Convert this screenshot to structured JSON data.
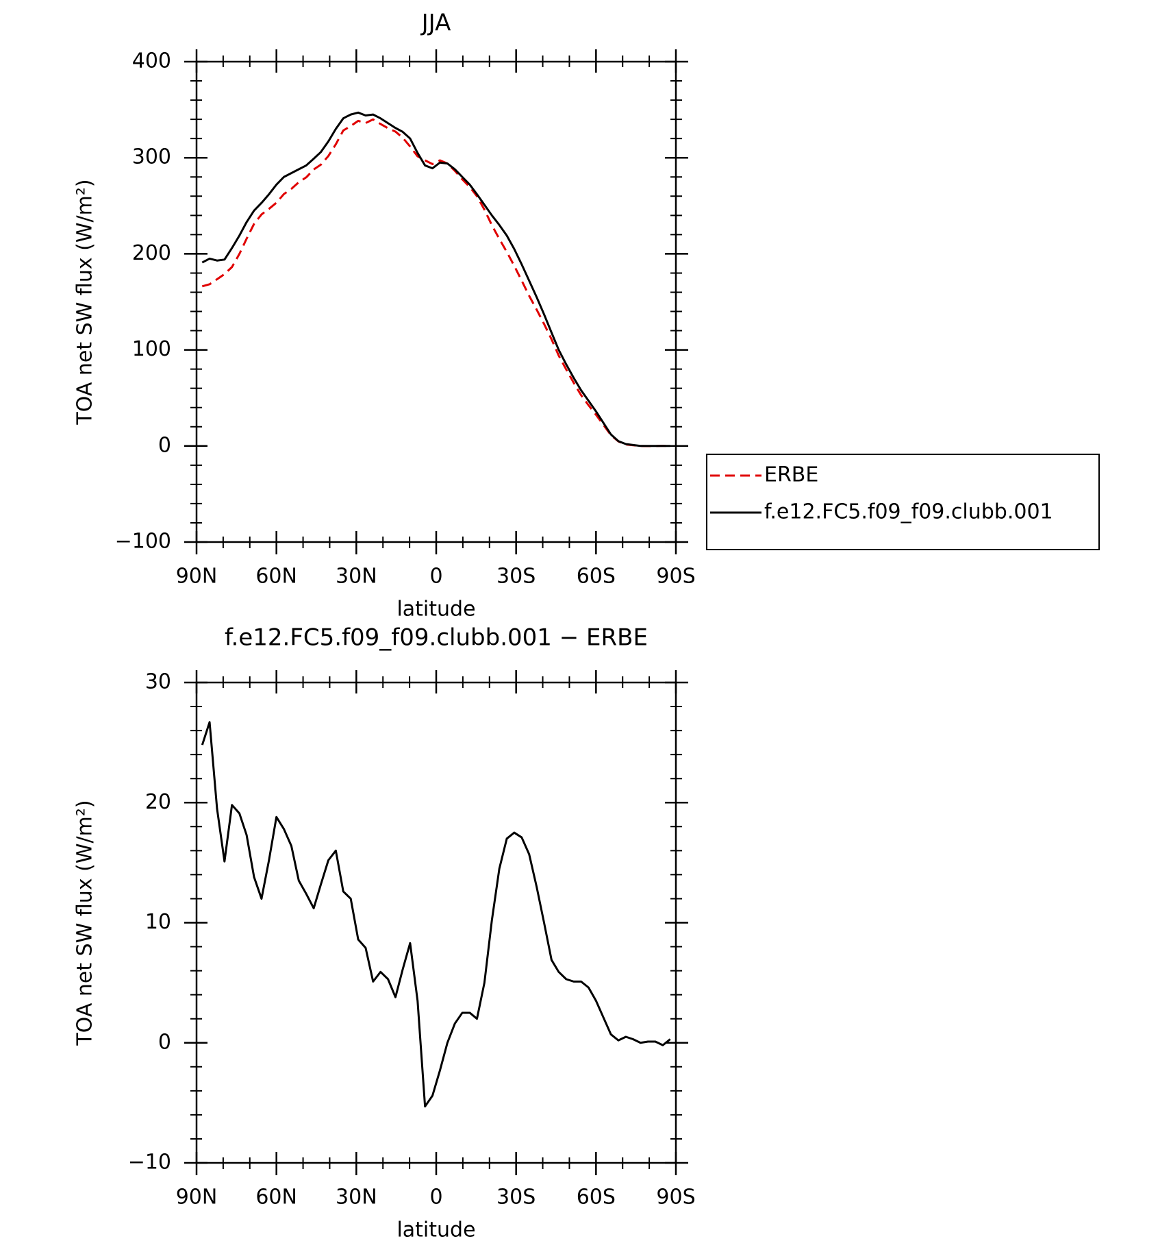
{
  "chart_data": [
    {
      "type": "line",
      "title": "JJA",
      "xlabel": "latitude",
      "ylabel": "TOA net SW flux (W/m²)",
      "x": [
        87.86,
        85.1,
        82.3,
        79.5,
        76.7,
        73.9,
        71.2,
        68.4,
        65.6,
        62.8,
        60.0,
        57.2,
        54.4,
        51.6,
        48.8,
        46.0,
        43.3,
        40.5,
        37.7,
        34.9,
        32.1,
        29.3,
        26.5,
        23.7,
        20.9,
        18.1,
        15.3,
        12.6,
        9.8,
        7.0,
        4.2,
        1.4,
        -1.4,
        -4.2,
        -7.0,
        -9.8,
        -12.6,
        -15.3,
        -18.1,
        -20.9,
        -23.7,
        -26.5,
        -29.3,
        -32.1,
        -34.9,
        -37.7,
        -40.5,
        -43.3,
        -46.0,
        -48.8,
        -51.6,
        -54.4,
        -57.2,
        -60.0,
        -62.8,
        -65.6,
        -68.4,
        -71.2,
        -73.9,
        -76.7,
        -79.5,
        -82.3,
        -85.1,
        -87.86
      ],
      "series": [
        {
          "name": "ERBE",
          "color": "#e00000",
          "linestyle": "dashed",
          "values": [
            166.2,
            168.3,
            173.5,
            178.9,
            186.2,
            199.9,
            215.7,
            231.2,
            241,
            246.8,
            253.2,
            262.2,
            267.6,
            274.5,
            279.6,
            287.8,
            292.8,
            301.8,
            314,
            328.4,
            333,
            338.4,
            336.1,
            339.9,
            335.1,
            330.7,
            327.2,
            320.9,
            311.7,
            301.5,
            297.3,
            293.4,
            297.3,
            294,
            286.4,
            277.5,
            269.5,
            260,
            246,
            229.8,
            215.5,
            202,
            187.5,
            172.1,
            156.3,
            142,
            127,
            111.1,
            94.1,
            79.7,
            65.9,
            52.9,
            42.4,
            32.5,
            21.9,
            11.3,
            4.8,
            1.5,
            0.7,
            0,
            -0.1,
            -0.1,
            0.2,
            -0.3
          ]
        },
        {
          "name": "f.e12.FC5.f09_f09.clubb.001",
          "color": "#000000",
          "linestyle": "solid",
          "values": [
            191,
            195,
            193,
            194,
            206,
            219,
            233,
            245,
            253,
            262,
            272,
            280,
            284,
            288,
            292,
            299,
            306,
            317,
            330,
            341,
            345,
            347,
            344,
            345,
            341,
            336,
            331,
            327,
            320,
            305,
            292,
            289,
            295,
            294,
            288,
            280,
            272,
            262,
            251,
            240,
            230,
            219,
            205,
            189,
            172,
            155,
            137,
            118,
            100,
            85,
            71,
            58,
            47,
            36,
            24,
            12,
            5,
            2,
            1,
            0,
            0,
            0,
            0,
            0
          ]
        }
      ],
      "xlim": [
        90,
        -90
      ],
      "xticks": [
        {
          "value": 90,
          "label": "90N"
        },
        {
          "value": 60,
          "label": "60N"
        },
        {
          "value": 30,
          "label": "30N"
        },
        0,
        {
          "value": -30,
          "label": "30S"
        },
        {
          "value": -60,
          "label": "60S"
        },
        {
          "value": -90,
          "label": "90S"
        }
      ],
      "xminorticks": [
        80,
        70,
        50,
        40,
        20,
        10,
        -10,
        -20,
        -40,
        -50,
        -70,
        -80
      ],
      "ylim": [
        -100,
        400
      ],
      "yticks": [
        {
          "value": -100,
          "label": "−100"
        },
        0,
        100,
        200,
        300,
        400
      ],
      "yminorticks": [
        -80,
        -60,
        -40,
        -20,
        20,
        40,
        60,
        80,
        120,
        140,
        160,
        180,
        220,
        240,
        260,
        280,
        320,
        340,
        360,
        380
      ],
      "legend": "outside-right"
    },
    {
      "type": "line",
      "title": "f.e12.FC5.f09_f09.clubb.001 − ERBE",
      "xlabel": "latitude",
      "ylabel": "TOA net SW flux (W/m²)",
      "x": [
        87.86,
        85.1,
        82.3,
        79.5,
        76.7,
        73.9,
        71.2,
        68.4,
        65.6,
        62.8,
        60.0,
        57.2,
        54.4,
        51.6,
        48.8,
        46.0,
        43.3,
        40.5,
        37.7,
        34.9,
        32.1,
        29.3,
        26.5,
        23.7,
        20.9,
        18.1,
        15.3,
        12.6,
        9.8,
        7.0,
        4.2,
        1.4,
        -1.4,
        -4.2,
        -7.0,
        -9.8,
        -12.6,
        -15.3,
        -18.1,
        -20.9,
        -23.7,
        -26.5,
        -29.3,
        -32.1,
        -34.9,
        -37.7,
        -40.5,
        -43.3,
        -46.0,
        -48.8,
        -51.6,
        -54.4,
        -57.2,
        -60.0,
        -62.8,
        -65.6,
        -68.4,
        -71.2,
        -73.9,
        -76.7,
        -79.5,
        -82.3,
        -85.1,
        -87.86
      ],
      "series": [
        {
          "color": "#000000",
          "linestyle": "solid",
          "values": [
            24.8,
            26.7,
            19.5,
            15.1,
            19.8,
            19.1,
            17.3,
            13.8,
            12.0,
            15.2,
            18.8,
            17.8,
            16.4,
            13.5,
            12.4,
            11.2,
            13.2,
            15.2,
            16.0,
            12.6,
            12.0,
            8.6,
            7.9,
            5.1,
            5.9,
            5.3,
            3.8,
            6.1,
            8.3,
            3.5,
            -5.3,
            -4.4,
            -2.3,
            0,
            1.6,
            2.5,
            2.5,
            2.0,
            5.0,
            10.2,
            14.5,
            17.0,
            17.5,
            17.1,
            15.7,
            13.0,
            10.0,
            6.9,
            5.9,
            5.3,
            5.1,
            5.1,
            4.6,
            3.5,
            2.1,
            0.7,
            0.2,
            0.5,
            0.3,
            0,
            0.1,
            0.1,
            -0.2,
            0.3
          ]
        }
      ],
      "xlim": [
        90,
        -90
      ],
      "xticks": [
        {
          "value": 90,
          "label": "90N"
        },
        {
          "value": 60,
          "label": "60N"
        },
        {
          "value": 30,
          "label": "30N"
        },
        0,
        {
          "value": -30,
          "label": "30S"
        },
        {
          "value": -60,
          "label": "60S"
        },
        {
          "value": -90,
          "label": "90S"
        }
      ],
      "xminorticks": [
        80,
        70,
        50,
        40,
        20,
        10,
        -10,
        -20,
        -40,
        -50,
        -70,
        -80
      ],
      "ylim": [
        -10,
        30
      ],
      "yticks": [
        {
          "value": -10,
          "label": "−10"
        },
        0,
        10,
        20,
        30
      ],
      "yminorticks": [
        -8,
        -6,
        -4,
        -2,
        2,
        4,
        6,
        8,
        12,
        14,
        16,
        18,
        22,
        24,
        26,
        28
      ]
    }
  ]
}
